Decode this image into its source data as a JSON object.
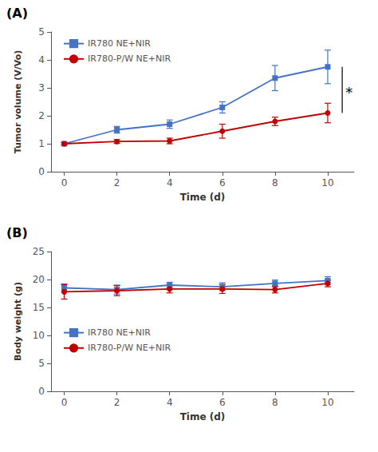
{
  "chart_data": [
    {
      "type": "line",
      "panel_label": "(A)",
      "xlabel": "Time (d)",
      "ylabel": "Tumor volume (V/Vo)",
      "x": [
        0,
        2,
        4,
        6,
        8,
        10
      ],
      "xlim": [
        -0.5,
        11
      ],
      "xticks": [
        0,
        2,
        4,
        6,
        8,
        10
      ],
      "ylim": [
        0,
        5
      ],
      "yticks": [
        0,
        1,
        2,
        3,
        4,
        5
      ],
      "grid": false,
      "legend": "upper left",
      "series": [
        {
          "name": "IR780 NE+NIR",
          "color": "#4472C4",
          "marker": "square",
          "values": [
            1.0,
            1.5,
            1.7,
            2.3,
            3.35,
            3.75
          ],
          "errors": [
            0.05,
            0.12,
            0.15,
            0.2,
            0.45,
            0.6
          ]
        },
        {
          "name": "IR780-P/W NE+NIR",
          "color": "#C00000",
          "marker": "circle",
          "values": [
            1.0,
            1.08,
            1.1,
            1.45,
            1.8,
            2.1
          ],
          "errors": [
            0.05,
            0.07,
            0.1,
            0.25,
            0.15,
            0.35
          ]
        }
      ],
      "annotations": [
        {
          "text": "*",
          "x": 10,
          "y_top": 3.75,
          "y_bot": 2.1
        }
      ]
    },
    {
      "type": "line",
      "panel_label": "(B)",
      "xlabel": "Time (d)",
      "ylabel": "Body weight (g)",
      "x": [
        0,
        2,
        4,
        6,
        8,
        10
      ],
      "xlim": [
        -0.5,
        11
      ],
      "xticks": [
        0,
        2,
        4,
        6,
        8,
        10
      ],
      "ylim": [
        0,
        25
      ],
      "yticks": [
        0,
        5,
        10,
        15,
        20,
        25
      ],
      "grid": false,
      "legend": "center left",
      "series": [
        {
          "name": "IR780 NE+NIR",
          "color": "#4472C4",
          "marker": "square",
          "values": [
            18.5,
            18.2,
            19.0,
            18.7,
            19.3,
            19.8
          ],
          "errors": [
            0.7,
            0.8,
            0.5,
            0.7,
            0.6,
            0.7
          ]
        },
        {
          "name": "IR780-P/W NE+NIR",
          "color": "#C00000",
          "marker": "circle",
          "values": [
            17.8,
            18.0,
            18.3,
            18.3,
            18.2,
            19.3
          ],
          "errors": [
            1.3,
            0.9,
            0.7,
            0.8,
            0.6,
            0.6
          ]
        }
      ]
    }
  ]
}
